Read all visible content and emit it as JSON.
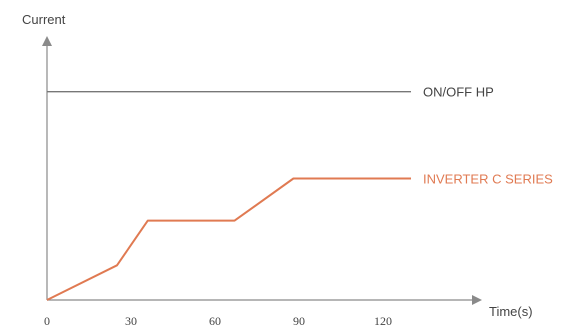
{
  "chart_data": {
    "type": "line",
    "ylabel": "Current",
    "xlabel": "Time(s)",
    "xticks": [
      0,
      30,
      60,
      90,
      120
    ],
    "xlim": [
      0,
      130
    ],
    "ylim": [
      0,
      100
    ],
    "grid": false,
    "legend": "right-inline",
    "series": [
      {
        "name": "ON/OFF HP",
        "color": "#777777",
        "x": [
          0,
          130
        ],
        "y": [
          84,
          84
        ]
      },
      {
        "name": "INVERTER C SERIES",
        "color": "#e07a52",
        "x": [
          0,
          25,
          36,
          67,
          88,
          130
        ],
        "y": [
          0,
          14,
          32,
          32,
          49,
          49
        ]
      }
    ]
  }
}
